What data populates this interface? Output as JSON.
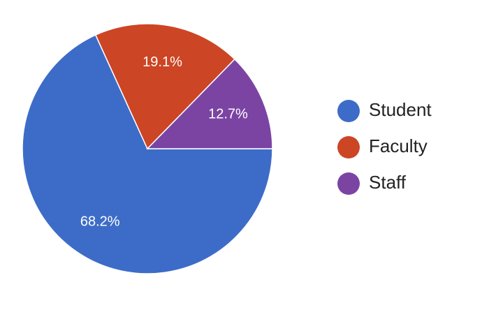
{
  "chart_data": {
    "type": "pie",
    "categories": [
      "Student",
      "Faculty",
      "Staff"
    ],
    "values": [
      68.2,
      19.1,
      12.7
    ],
    "value_labels": [
      "68.2%",
      "19.1%",
      "12.7%"
    ],
    "colors": [
      "#3d6cc8",
      "#cc4525",
      "#7b44a3"
    ],
    "legend": "right"
  }
}
